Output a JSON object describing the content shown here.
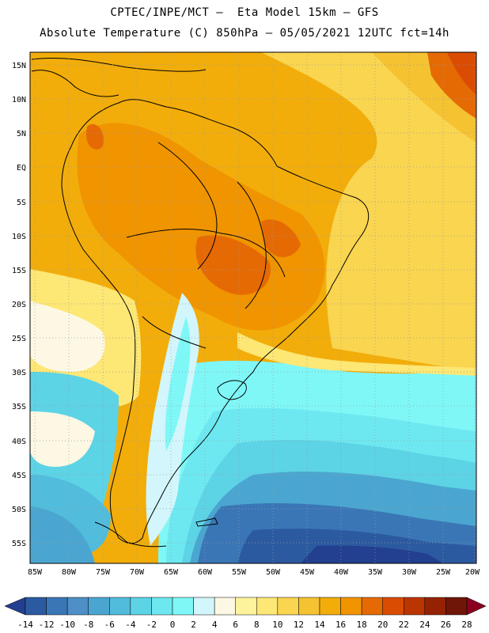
{
  "title_line1": "CPTEC/INPE/MCT –  Eta Model 15km – GFS",
  "title_line2": "Absolute Temperature (C) 850hPa – 05/05/2021 12UTC fct=14h",
  "lat_labels": [
    "15N",
    "10N",
    "5N",
    "EQ",
    "5S",
    "10S",
    "15S",
    "20S",
    "25S",
    "30S",
    "35S",
    "40S",
    "45S",
    "50S",
    "55S"
  ],
  "lon_labels": [
    "85W",
    "80W",
    "75W",
    "70W",
    "65W",
    "60W",
    "55W",
    "50W",
    "45W",
    "40W",
    "35W",
    "30W",
    "25W",
    "20W"
  ],
  "colorbar": {
    "labels": [
      "-14",
      "-12",
      "-10",
      "-8",
      "-6",
      "-4",
      "-2",
      "0",
      "2",
      "4",
      "6",
      "8",
      "10",
      "12",
      "14",
      "16",
      "18",
      "20",
      "22",
      "24",
      "26",
      "28"
    ],
    "colors": [
      "#233f8f",
      "#2c5aa0",
      "#3a76b6",
      "#4d8fc6",
      "#4aa6d0",
      "#51bcdc",
      "#5dd3e6",
      "#6ee8f0",
      "#7ff7f7",
      "#d2f6fb",
      "#fdf8e4",
      "#fdf39c",
      "#fde775",
      "#f9d550",
      "#f5c232",
      "#f2ad0b",
      "#f09400",
      "#e56a04",
      "#d94c02",
      "#bb3501",
      "#952303",
      "#6f1609",
      "#8a0020"
    ]
  }
}
